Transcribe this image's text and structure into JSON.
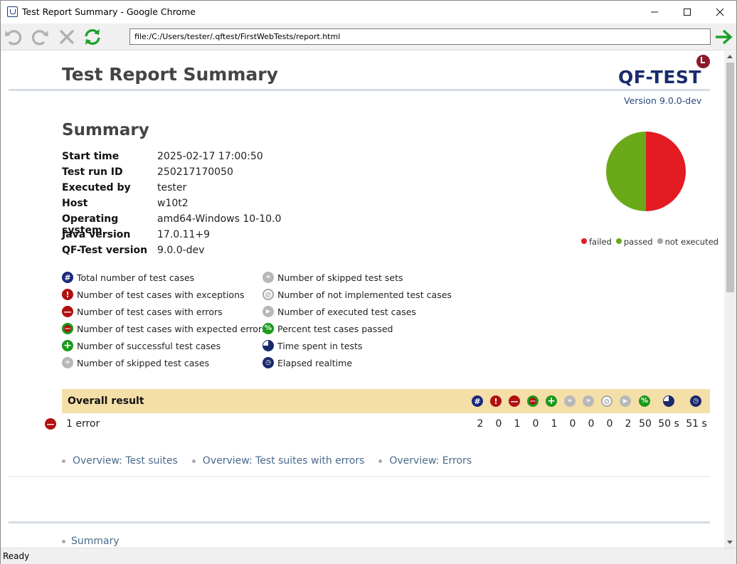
{
  "window": {
    "title": "Test Report Summary - Google Chrome",
    "url": "file:/C:/Users/tester/.qftest/FirstWebTests/report.html",
    "status": "Ready"
  },
  "header": {
    "title": "Test Report Summary",
    "logo": "QF-TEST",
    "version": "Version 9.0.0-dev"
  },
  "summary": {
    "heading": "Summary",
    "rows": [
      {
        "key": "Start time",
        "value": "2025-02-17 17:00:50"
      },
      {
        "key": "Test run ID",
        "value": "250217170050"
      },
      {
        "key": "Executed by",
        "value": "tester"
      },
      {
        "key": "Host",
        "value": "w10t2"
      },
      {
        "key": "Operating system",
        "value": "amd64-Windows 10-10.0"
      },
      {
        "key": "Java version",
        "value": "17.0.11+9"
      },
      {
        "key": "QF-Test version",
        "value": "9.0.0-dev"
      }
    ]
  },
  "pie": {
    "failed_fraction": 0.5,
    "passed_fraction": 0.5,
    "colors": {
      "failed": "#e31b23",
      "passed": "#6aaa1a",
      "not_executed": "#a8a8a8"
    },
    "legend": [
      "failed",
      "passed",
      "not executed"
    ]
  },
  "legend_keys": {
    "left": [
      {
        "icon": "total-icon",
        "label": "Total number of test cases"
      },
      {
        "icon": "exception-icon",
        "label": "Number of test cases with exceptions"
      },
      {
        "icon": "error-icon",
        "label": "Number of test cases with errors"
      },
      {
        "icon": "expected-error-icon",
        "label": "Number of test cases with expected errors"
      },
      {
        "icon": "success-icon",
        "label": "Number of successful test cases"
      },
      {
        "icon": "skipped-icon",
        "label": "Number of skipped test cases"
      }
    ],
    "right": [
      {
        "icon": "skipped-set-icon",
        "label": "Number of skipped test sets"
      },
      {
        "icon": "not-implemented-icon",
        "label": "Number of not implemented test cases"
      },
      {
        "icon": "executed-icon",
        "label": "Number of executed test cases"
      },
      {
        "icon": "percent-icon",
        "label": "Percent test cases passed"
      },
      {
        "icon": "time-spent-icon",
        "label": "Time spent in tests"
      },
      {
        "icon": "realtime-icon",
        "label": "Elapsed realtime"
      }
    ]
  },
  "overall": {
    "title": "Overall result",
    "result_text": "1 error",
    "values": [
      "2",
      "0",
      "1",
      "0",
      "1",
      "0",
      "0",
      "0",
      "2",
      "50",
      "50 s",
      "51 s"
    ]
  },
  "links": [
    "Overview: Test suites",
    "Overview: Test suites with errors",
    "Overview: Errors"
  ],
  "toc": [
    "Summary"
  ]
}
